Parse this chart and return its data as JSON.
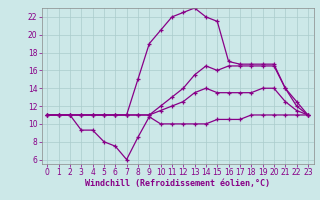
{
  "xlabel": "Windchill (Refroidissement éolien,°C)",
  "background_color": "#cce8e8",
  "grid_color": "#aacccc",
  "line_color": "#880088",
  "spine_color": "#888888",
  "xlim": [
    -0.5,
    23.5
  ],
  "ylim": [
    5.5,
    23.0
  ],
  "yticks": [
    6,
    8,
    10,
    12,
    14,
    16,
    18,
    20,
    22
  ],
  "xticks": [
    0,
    1,
    2,
    3,
    4,
    5,
    6,
    7,
    8,
    9,
    10,
    11,
    12,
    13,
    14,
    15,
    16,
    17,
    18,
    19,
    20,
    21,
    22,
    23
  ],
  "series": [
    [
      11.0,
      11.0,
      11.0,
      9.3,
      9.3,
      8.0,
      7.5,
      6.0,
      8.5,
      10.8,
      10.0,
      10.0,
      10.0,
      10.0,
      10.0,
      10.5,
      10.5,
      10.5,
      11.0,
      11.0,
      11.0,
      11.0,
      11.0,
      11.0
    ],
    [
      11.0,
      11.0,
      11.0,
      11.0,
      11.0,
      11.0,
      11.0,
      11.0,
      11.0,
      11.0,
      11.5,
      12.0,
      12.5,
      13.5,
      14.0,
      13.5,
      13.5,
      13.5,
      13.5,
      14.0,
      14.0,
      12.5,
      11.5,
      11.0
    ],
    [
      11.0,
      11.0,
      11.0,
      11.0,
      11.0,
      11.0,
      11.0,
      11.0,
      11.0,
      11.0,
      12.0,
      13.0,
      14.0,
      15.5,
      16.5,
      16.0,
      16.5,
      16.5,
      16.5,
      16.5,
      16.5,
      14.0,
      12.5,
      11.0
    ],
    [
      11.0,
      11.0,
      11.0,
      11.0,
      11.0,
      11.0,
      11.0,
      11.0,
      15.0,
      19.0,
      20.5,
      22.0,
      22.5,
      23.0,
      22.0,
      21.5,
      17.0,
      16.7,
      16.7,
      16.7,
      16.7,
      14.0,
      12.0,
      11.0
    ]
  ],
  "xlabel_fontsize": 6,
  "tick_fontsize": 5.5,
  "linewidth": 0.9,
  "markersize": 3.0
}
